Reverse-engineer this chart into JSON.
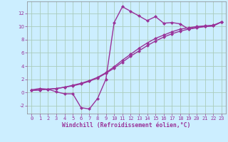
{
  "background_color": "#cceeff",
  "grid_color": "#aaccbb",
  "line_color": "#993399",
  "markersize": 2.5,
  "linewidth": 1.0,
  "xlim": [
    -0.5,
    23.5
  ],
  "ylim": [
    -3.2,
    13.8
  ],
  "xticks": [
    0,
    1,
    2,
    3,
    4,
    5,
    6,
    7,
    8,
    9,
    10,
    11,
    12,
    13,
    14,
    15,
    16,
    17,
    18,
    19,
    20,
    21,
    22,
    23
  ],
  "yticks": [
    -2,
    0,
    2,
    4,
    6,
    8,
    10,
    12
  ],
  "xlabel": "Windchill (Refroidissement éolien,°C)",
  "xlabel_fontsize": 5.8,
  "tick_fontsize": 5.0,
  "series1_x": [
    0,
    1,
    2,
    3,
    4,
    5,
    6,
    7,
    8,
    9,
    10,
    11,
    12,
    13,
    14,
    15,
    16,
    17,
    18,
    19,
    20,
    21,
    22,
    23
  ],
  "series1_y": [
    0.4,
    0.6,
    0.5,
    0.1,
    -0.2,
    -0.2,
    -2.3,
    -2.5,
    -0.9,
    2.0,
    10.6,
    13.0,
    12.3,
    11.6,
    10.9,
    11.5,
    10.5,
    10.6,
    10.4,
    9.6,
    9.9,
    10.0,
    10.1,
    10.7
  ],
  "series2_x": [
    0,
    1,
    2,
    3,
    4,
    5,
    6,
    7,
    8,
    9,
    10,
    11,
    12,
    13,
    14,
    15,
    16,
    17,
    18,
    19,
    20,
    21,
    22,
    23
  ],
  "series2_y": [
    0.3,
    0.4,
    0.5,
    0.6,
    0.8,
    1.1,
    1.4,
    1.8,
    2.3,
    3.0,
    3.9,
    4.9,
    5.8,
    6.7,
    7.5,
    8.2,
    8.7,
    9.2,
    9.6,
    9.8,
    10.0,
    10.1,
    10.2,
    10.7
  ],
  "series3_x": [
    0,
    1,
    2,
    3,
    4,
    5,
    6,
    7,
    8,
    9,
    10,
    11,
    12,
    13,
    14,
    15,
    16,
    17,
    18,
    19,
    20,
    21,
    22,
    23
  ],
  "series3_y": [
    0.3,
    0.4,
    0.5,
    0.6,
    0.8,
    1.0,
    1.3,
    1.7,
    2.2,
    2.9,
    3.7,
    4.6,
    5.5,
    6.3,
    7.1,
    7.8,
    8.4,
    8.9,
    9.3,
    9.6,
    9.8,
    10.0,
    10.1,
    10.7
  ]
}
